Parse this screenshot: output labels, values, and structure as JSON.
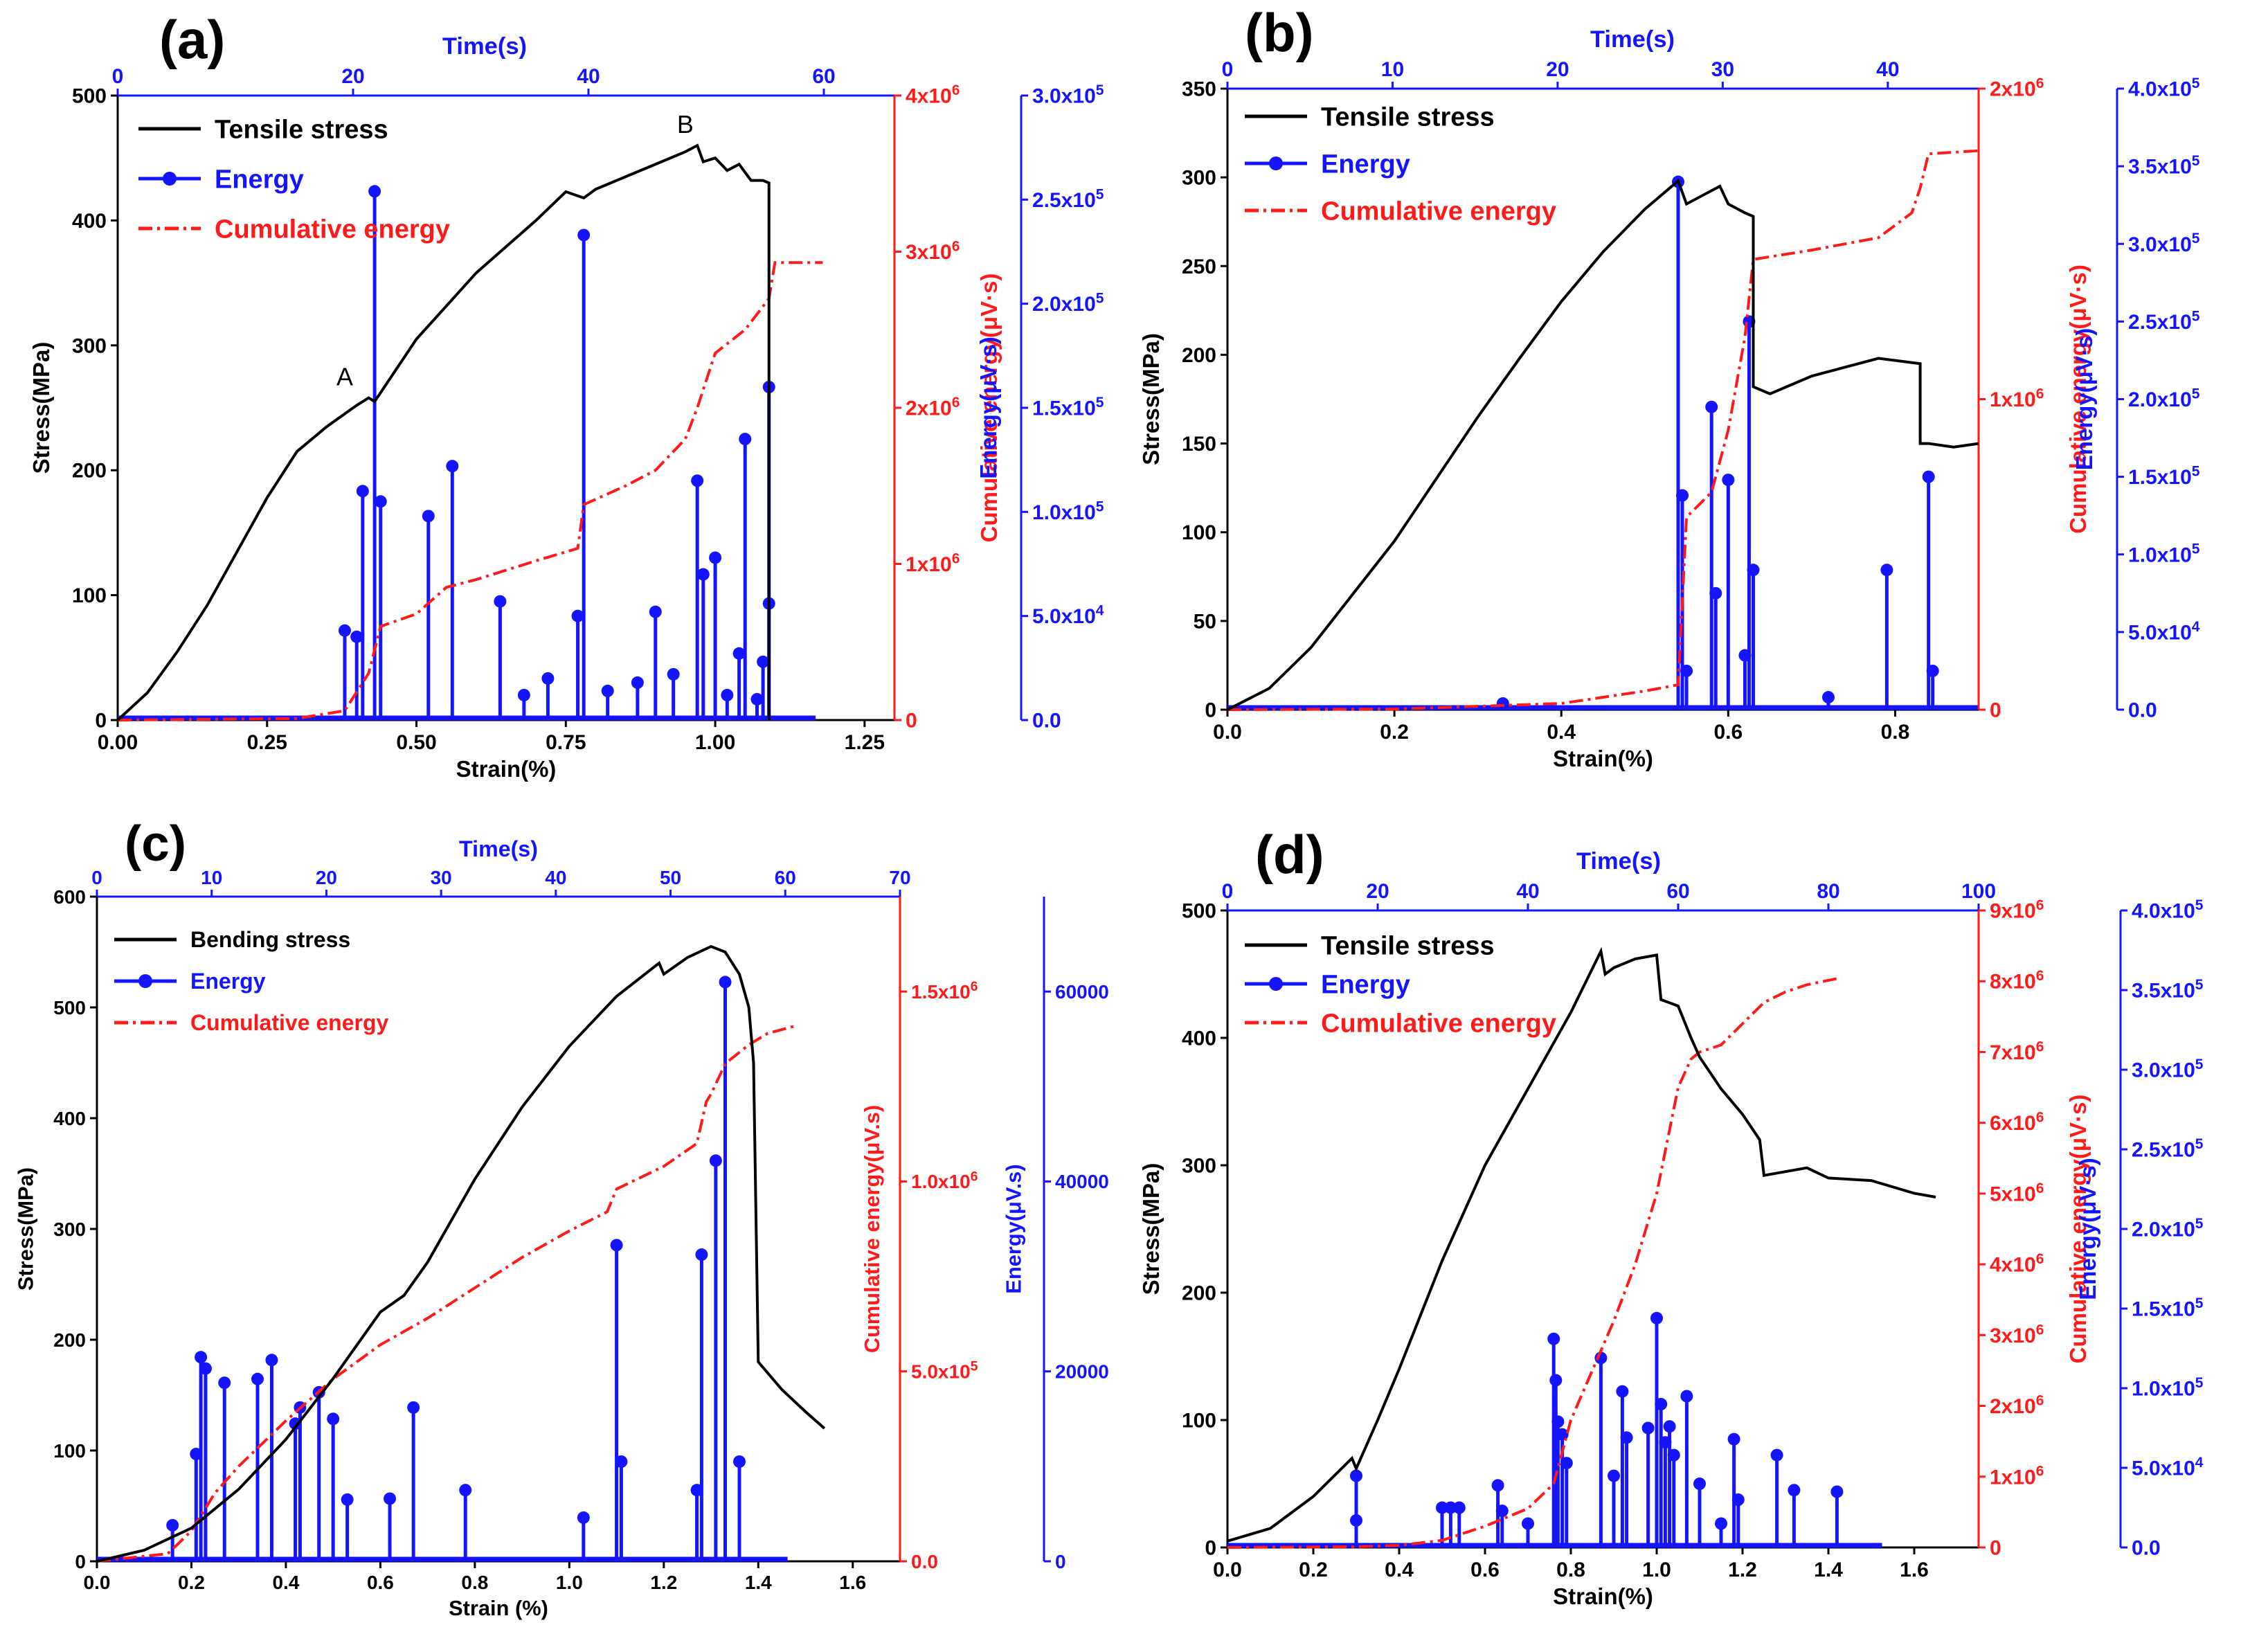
{
  "colors": {
    "stress": "#000000",
    "energy": "#1414ff",
    "cumulative": "#ff1a1a",
    "axis": "#000000",
    "time_axis": "#1414ff"
  },
  "chart_data": [
    {
      "type": "line",
      "panel_label": "(a)",
      "time_title": "Time(s)",
      "time_ticks": [
        "0",
        "20",
        "40",
        "60"
      ],
      "time_range": [
        0,
        66
      ],
      "xlabel": "Strain(%)",
      "xlim": [
        0,
        1.3
      ],
      "x_ticks": [
        0,
        0.25,
        0.5,
        0.75,
        1.0,
        1.25
      ],
      "x_tick_labels": [
        "0.00",
        "0.25",
        "0.50",
        "0.75",
        "1.00",
        "1.25"
      ],
      "ylabel": "Stress(MPa)",
      "ylim": [
        0,
        500
      ],
      "y_ticks": [
        0,
        100,
        200,
        300,
        400,
        500
      ],
      "y_tick_labels": [
        "0",
        "100",
        "200",
        "300",
        "400",
        "500"
      ],
      "cum_label": "Cumulative energy(μV·s)",
      "cum_lim": [
        0,
        4000000
      ],
      "cum_ticks": [
        0,
        1000000,
        2000000,
        3000000,
        4000000
      ],
      "cum_tick_labels": [
        "0",
        "1x10^6",
        "2x10^6",
        "3x10^6",
        "4x10^6"
      ],
      "energy_label": "Energy(μV·s)",
      "energy_lim": [
        0,
        300000
      ],
      "energy_ticks": [
        0,
        50000,
        100000,
        150000,
        200000,
        250000,
        300000
      ],
      "energy_tick_labels": [
        "0.0",
        "5.0x10^4",
        "1.0x10^5",
        "1.5x10^5",
        "2.0x10^5",
        "2.5x10^5",
        "3.0x10^5"
      ],
      "legend": [
        "Tensile stress",
        "Energy",
        "Cumulative energy"
      ],
      "annotations": [
        {
          "text": "A",
          "x": 0.38,
          "y": 268
        },
        {
          "text": "B",
          "x": 0.95,
          "y": 470
        }
      ],
      "series": [
        {
          "name": "Tensile stress",
          "x": [
            0,
            0.05,
            0.1,
            0.15,
            0.2,
            0.25,
            0.3,
            0.35,
            0.4,
            0.42,
            0.43,
            0.5,
            0.6,
            0.7,
            0.75,
            0.78,
            0.8,
            0.85,
            0.9,
            0.95,
            0.97,
            0.98,
            1.0,
            1.02,
            1.04,
            1.06,
            1.08,
            1.09,
            1.09
          ],
          "y": [
            0,
            22,
            55,
            92,
            135,
            178,
            215,
            235,
            252,
            258,
            255,
            305,
            358,
            400,
            423,
            418,
            425,
            435,
            445,
            455,
            460,
            447,
            450,
            440,
            445,
            432,
            432,
            430,
            0
          ]
        },
        {
          "name": "Cumulative energy",
          "x": [
            0,
            0.3,
            0.38,
            0.42,
            0.44,
            0.5,
            0.55,
            0.6,
            0.7,
            0.77,
            0.78,
            0.85,
            0.9,
            0.95,
            0.97,
            1.0,
            1.05,
            1.09,
            1.1,
            1.18
          ],
          "y": [
            0,
            10000,
            60000,
            300000,
            600000,
            680000,
            850000,
            900000,
            1020000,
            1100000,
            1380000,
            1500000,
            1600000,
            1800000,
            2000000,
            2350000,
            2500000,
            2700000,
            2930000,
            2930000
          ]
        },
        {
          "name": "Energy",
          "x": [
            0.38,
            0.41,
            0.43,
            0.44,
            0.52,
            0.56,
            0.64,
            0.72,
            0.77,
            0.78,
            0.9,
            0.97,
            0.98,
            1.0,
            1.04,
            1.05,
            1.08,
            1.09,
            1.09,
            0.4,
            0.68,
            0.82,
            0.87,
            0.93,
            1.02,
            1.07
          ],
          "y": [
            43000,
            110000,
            254000,
            105000,
            98000,
            122000,
            57000,
            20000,
            50000,
            233000,
            52000,
            115000,
            70000,
            78000,
            32000,
            135000,
            28000,
            160000,
            56000,
            40000,
            12000,
            14000,
            18000,
            22000,
            12000,
            10000
          ]
        }
      ]
    },
    {
      "type": "line",
      "panel_label": "(b)",
      "time_title": "Time(s)",
      "time_ticks": [
        "0",
        "10",
        "20",
        "30",
        "40"
      ],
      "time_range": [
        0,
        45.5
      ],
      "xlabel": "Strain(%)",
      "xlim": [
        0,
        0.9
      ],
      "x_ticks": [
        0,
        0.2,
        0.4,
        0.6,
        0.8
      ],
      "x_tick_labels": [
        "0.0",
        "0.2",
        "0.4",
        "0.6",
        "0.8"
      ],
      "ylabel": "Stress(MPa)",
      "ylim": [
        0,
        350
      ],
      "y_ticks": [
        0,
        50,
        100,
        150,
        200,
        250,
        300,
        350
      ],
      "y_tick_labels": [
        "0",
        "50",
        "100",
        "150",
        "200",
        "250",
        "300",
        "350"
      ],
      "cum_label": "Cumulative energy(μV·s)",
      "cum_lim": [
        0,
        2000000
      ],
      "cum_ticks": [
        0,
        1000000,
        2000000
      ],
      "cum_tick_labels": [
        "0",
        "1x10^6",
        "2x10^6"
      ],
      "energy_label": "Energy(μV·s)",
      "energy_lim": [
        0,
        400000
      ],
      "energy_ticks": [
        0,
        50000,
        100000,
        150000,
        200000,
        250000,
        300000,
        350000,
        400000
      ],
      "energy_tick_labels": [
        "0.0",
        "5.0x10^4",
        "1.0x10^5",
        "1.5x10^5",
        "2.0x10^5",
        "2.5x10^5",
        "3.0x10^5",
        "3.5x10^5",
        "4.0x10^5"
      ],
      "legend": [
        "Tensile stress",
        "Energy",
        "Cumulative energy"
      ],
      "annotations": [],
      "series": [
        {
          "name": "Tensile stress",
          "x": [
            0,
            0.05,
            0.1,
            0.15,
            0.2,
            0.25,
            0.3,
            0.35,
            0.4,
            0.45,
            0.5,
            0.54,
            0.55,
            0.57,
            0.59,
            0.6,
            0.62,
            0.63,
            0.63,
            0.65,
            0.7,
            0.78,
            0.83,
            0.83,
            0.84,
            0.87,
            0.9
          ],
          "y": [
            0,
            12,
            35,
            65,
            95,
            130,
            165,
            198,
            230,
            258,
            282,
            298,
            285,
            290,
            295,
            285,
            280,
            278,
            182,
            178,
            188,
            198,
            195,
            150,
            150,
            148,
            150
          ]
        },
        {
          "name": "Cumulative energy",
          "x": [
            0,
            0.2,
            0.4,
            0.5,
            0.54,
            0.55,
            0.58,
            0.6,
            0.62,
            0.63,
            0.7,
            0.78,
            0.82,
            0.83,
            0.84,
            0.9
          ],
          "y": [
            0,
            2000,
            20000,
            60000,
            80000,
            620000,
            700000,
            900000,
            1200000,
            1450000,
            1480000,
            1520000,
            1600000,
            1680000,
            1790000,
            1800000
          ]
        },
        {
          "name": "Energy",
          "x": [
            0.54,
            0.545,
            0.58,
            0.585,
            0.6,
            0.62,
            0.625,
            0.63,
            0.72,
            0.79,
            0.84,
            0.845,
            0.33,
            0.55
          ],
          "y": [
            340000,
            138000,
            195000,
            75000,
            148000,
            35000,
            250000,
            90000,
            8000,
            90000,
            150000,
            25000,
            4000,
            25000
          ]
        }
      ]
    },
    {
      "type": "line",
      "panel_label": "(c)",
      "time_title": "Time(s)",
      "time_ticks": [
        "0",
        "10",
        "20",
        "30",
        "40",
        "50",
        "60",
        "70"
      ],
      "time_range": [
        0,
        70
      ],
      "xlabel": "Strain (%)",
      "xlim": [
        0,
        1.7
      ],
      "x_ticks": [
        0,
        0.2,
        0.4,
        0.6,
        0.8,
        1.0,
        1.2,
        1.4,
        1.6
      ],
      "x_tick_labels": [
        "0.0",
        "0.2",
        "0.4",
        "0.6",
        "0.8",
        "1.0",
        "1.2",
        "1.4",
        "1.6"
      ],
      "ylabel": "Stress(MPa)",
      "ylim": [
        0,
        600
      ],
      "y_ticks": [
        0,
        100,
        200,
        300,
        400,
        500,
        600
      ],
      "y_tick_labels": [
        "0",
        "100",
        "200",
        "300",
        "400",
        "500",
        "600"
      ],
      "cum_label": "Cumulative energy(μV.s)",
      "cum_lim": [
        0,
        1750000
      ],
      "cum_ticks": [
        0,
        500000,
        1000000,
        1500000
      ],
      "cum_tick_labels": [
        "0.0",
        "5.0x10^5",
        "1.0x10^6",
        "1.5x10^6"
      ],
      "energy_label": "Energy(μV.s)",
      "energy_lim": [
        0,
        70000
      ],
      "energy_ticks": [
        0,
        20000,
        40000,
        60000
      ],
      "energy_tick_labels": [
        "0",
        "20000",
        "40000",
        "60000"
      ],
      "legend": [
        "Bending stress",
        "Energy",
        "Cumulative energy"
      ],
      "annotations": [],
      "series": [
        {
          "name": "Bending stress",
          "x": [
            0,
            0.1,
            0.2,
            0.3,
            0.4,
            0.5,
            0.6,
            0.65,
            0.7,
            0.8,
            0.9,
            1.0,
            1.1,
            1.19,
            1.2,
            1.25,
            1.3,
            1.33,
            1.36,
            1.38,
            1.39,
            1.4,
            1.45,
            1.5,
            1.54
          ],
          "y": [
            0,
            10,
            30,
            65,
            110,
            165,
            225,
            240,
            270,
            345,
            410,
            465,
            510,
            540,
            530,
            545,
            555,
            550,
            530,
            500,
            450,
            180,
            155,
            135,
            120
          ]
        },
        {
          "name": "Cumulative energy",
          "x": [
            0,
            0.15,
            0.2,
            0.25,
            0.3,
            0.4,
            0.5,
            0.6,
            0.7,
            0.8,
            0.9,
            1.0,
            1.08,
            1.1,
            1.2,
            1.27,
            1.29,
            1.3,
            1.33,
            1.38,
            1.42,
            1.48
          ],
          "y": [
            0,
            20000,
            80000,
            180000,
            250000,
            370000,
            480000,
            570000,
            640000,
            720000,
            800000,
            870000,
            920000,
            980000,
            1040000,
            1100000,
            1210000,
            1230000,
            1310000,
            1360000,
            1390000,
            1410000
          ]
        },
        {
          "name": "Energy",
          "x": [
            0.21,
            0.22,
            0.23,
            0.27,
            0.34,
            0.37,
            0.42,
            0.43,
            0.47,
            0.5,
            0.62,
            0.67,
            0.78,
            1.1,
            1.11,
            1.28,
            1.31,
            1.33,
            1.36,
            0.16,
            0.53,
            1.03,
            1.27
          ],
          "y": [
            11300,
            21500,
            20300,
            18800,
            19200,
            21200,
            14500,
            16200,
            17800,
            15000,
            6600,
            16200,
            7500,
            33300,
            10500,
            32300,
            42200,
            61000,
            10500,
            3800,
            6500,
            4600,
            7500
          ]
        }
      ]
    },
    {
      "type": "line",
      "panel_label": "(d)",
      "time_title": "Time(s)",
      "time_ticks": [
        "0",
        "20",
        "40",
        "60",
        "80",
        "100"
      ],
      "time_range": [
        0,
        100
      ],
      "xlabel": "Strain(%)",
      "xlim": [
        0,
        1.75
      ],
      "x_ticks": [
        0,
        0.2,
        0.4,
        0.6,
        0.8,
        1.0,
        1.2,
        1.4,
        1.6
      ],
      "x_tick_labels": [
        "0.0",
        "0.2",
        "0.4",
        "0.6",
        "0.8",
        "1.0",
        "1.2",
        "1.4",
        "1.6"
      ],
      "ylabel": "Stress(MPa)",
      "ylim": [
        0,
        500
      ],
      "y_ticks": [
        0,
        100,
        200,
        300,
        400,
        500
      ],
      "y_tick_labels": [
        "0",
        "100",
        "200",
        "300",
        "400",
        "500"
      ],
      "cum_label": "Cumulative energy(μV·s)",
      "cum_lim": [
        0,
        9000000
      ],
      "cum_ticks": [
        0,
        1000000,
        2000000,
        3000000,
        4000000,
        5000000,
        6000000,
        7000000,
        8000000,
        9000000
      ],
      "cum_tick_labels": [
        "0",
        "1x10^6",
        "2x10^6",
        "3x10^6",
        "4x10^6",
        "5x10^6",
        "6x10^6",
        "7x10^6",
        "8x10^6",
        "9x10^6"
      ],
      "energy_label": "Energy(μV·s)",
      "energy_lim": [
        0,
        400000
      ],
      "energy_ticks": [
        0,
        50000,
        100000,
        150000,
        200000,
        250000,
        300000,
        350000,
        400000
      ],
      "energy_tick_labels": [
        "0.0",
        "5.0x10^4",
        "1.0x10^5",
        "1.5x10^5",
        "2.0x10^5",
        "2.5x10^5",
        "3.0x10^5",
        "3.5x10^5",
        "4.0x10^5"
      ],
      "legend": [
        "Tensile stress",
        "Energy",
        "Cumulative energy"
      ],
      "annotations": [],
      "series": [
        {
          "name": "Tensile stress",
          "x": [
            0,
            0.1,
            0.2,
            0.29,
            0.3,
            0.35,
            0.4,
            0.5,
            0.6,
            0.7,
            0.8,
            0.87,
            0.88,
            0.9,
            0.95,
            1.0,
            1.01,
            1.05,
            1.08,
            1.1,
            1.15,
            1.2,
            1.24,
            1.25,
            1.3,
            1.35,
            1.4,
            1.5,
            1.6,
            1.65
          ],
          "y": [
            5,
            15,
            40,
            70,
            62,
            100,
            140,
            225,
            300,
            360,
            420,
            468,
            450,
            455,
            462,
            465,
            430,
            425,
            400,
            385,
            360,
            340,
            320,
            292,
            295,
            298,
            290,
            288,
            278,
            275
          ]
        },
        {
          "name": "Cumulative energy",
          "x": [
            0,
            0.3,
            0.4,
            0.5,
            0.6,
            0.7,
            0.76,
            0.8,
            0.85,
            0.9,
            0.95,
            1.0,
            1.05,
            1.08,
            1.1,
            1.15,
            1.2,
            1.25,
            1.3,
            1.35,
            1.43
          ],
          "y": [
            0,
            10000,
            30000,
            100000,
            300000,
            550000,
            900000,
            1800000,
            2500000,
            3200000,
            4000000,
            5000000,
            6500000,
            6900000,
            7000000,
            7100000,
            7400000,
            7700000,
            7850000,
            7950000,
            8050000
          ]
        },
        {
          "name": "Energy",
          "x": [
            0.3,
            0.3,
            0.5,
            0.52,
            0.54,
            0.63,
            0.64,
            0.76,
            0.765,
            0.77,
            0.78,
            0.79,
            0.87,
            0.92,
            0.93,
            0.98,
            1.0,
            1.01,
            1.02,
            1.03,
            1.04,
            1.07,
            1.18,
            1.19,
            1.28,
            1.32,
            1.42,
            0.7,
            0.9,
            1.1,
            1.15
          ],
          "y": [
            45000,
            17000,
            25000,
            25000,
            25000,
            39000,
            23000,
            131000,
            105000,
            79000,
            71000,
            53000,
            119000,
            98000,
            69000,
            75000,
            144000,
            90000,
            66000,
            76000,
            58000,
            95000,
            68000,
            30000,
            58000,
            36000,
            35000,
            15000,
            45000,
            40000,
            15000
          ]
        }
      ]
    }
  ]
}
